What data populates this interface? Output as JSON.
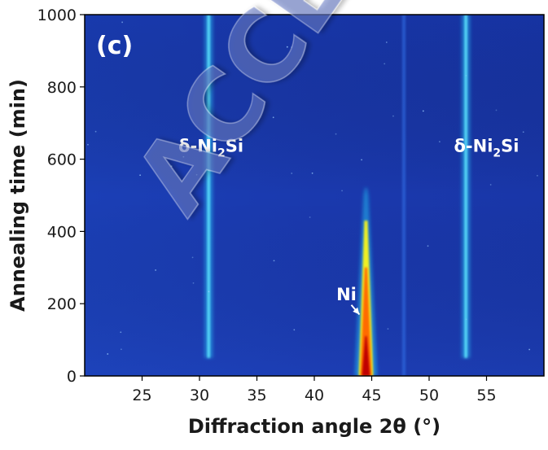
{
  "chart_data": {
    "type": "heatmap",
    "panel_label": "(c)",
    "xlabel": "Diffraction angle 2θ (°)",
    "ylabel": "Annealing time (min)",
    "xlim": [
      20,
      60
    ],
    "ylim": [
      0,
      1000
    ],
    "x_ticks": [
      25,
      30,
      35,
      40,
      45,
      50,
      55
    ],
    "y_ticks": [
      0,
      200,
      400,
      600,
      800,
      1000
    ],
    "peaks": [
      {
        "name": "δ-Ni2Si",
        "position": 30.8,
        "time_start": 50,
        "time_end": 1000,
        "intensity": "medium"
      },
      {
        "name": "δ-Ni2Si",
        "position": 53.2,
        "time_start": 50,
        "time_end": 1000,
        "intensity": "medium"
      },
      {
        "name": "Ni",
        "position": 44.5,
        "time_start": 0,
        "time_end": 520,
        "intensity": "high"
      },
      {
        "name": "",
        "position": 47.8,
        "time_start": 0,
        "time_end": 1000,
        "intensity": "low"
      }
    ],
    "annotations": [
      {
        "text": "δ-Ni",
        "subscript": "2",
        "suffix": "Si",
        "x": 31,
        "y": 620
      },
      {
        "text": "δ-Ni",
        "subscript": "2",
        "suffix": "Si",
        "x": 55,
        "y": 620
      },
      {
        "text": "Ni",
        "x": 42.8,
        "y": 210
      }
    ],
    "watermark": "ACCEPTED",
    "colormap": [
      "#1428a0",
      "#1e5adc",
      "#1ec8f0",
      "#f0f000",
      "#ff6400",
      "#c80000"
    ]
  }
}
